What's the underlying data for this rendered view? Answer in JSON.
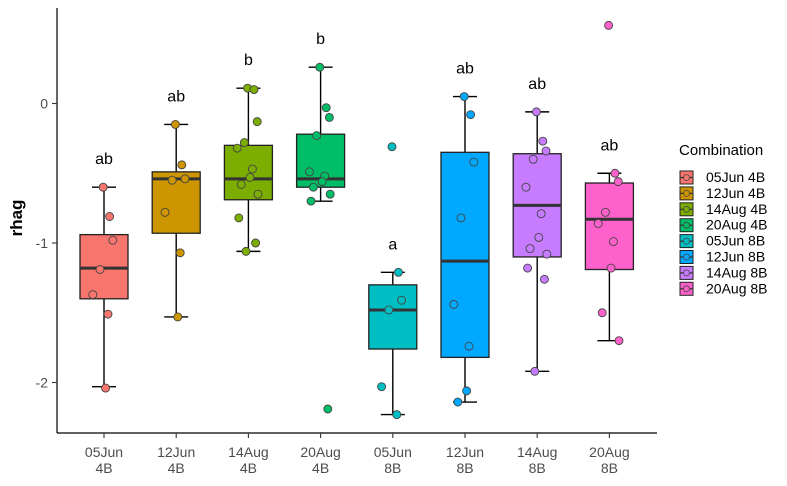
{
  "chart_data": {
    "type": "boxplot",
    "title": "",
    "xlabel": "",
    "ylabel": "rhag",
    "ylim": [
      -2.35,
      0.68
    ],
    "yticks": [
      0,
      -1,
      -2
    ],
    "ytick_labels": [
      "0",
      "-1",
      "-2"
    ],
    "grid": false,
    "legend": {
      "title": "Combination",
      "placement": "right"
    },
    "categories": [
      {
        "line1": "05Jun",
        "line2": "4B"
      },
      {
        "line1": "12Jun",
        "line2": "4B"
      },
      {
        "line1": "14Aug",
        "line2": "4B"
      },
      {
        "line1": "20Aug",
        "line2": "4B"
      },
      {
        "line1": "05Jun",
        "line2": "8B"
      },
      {
        "line1": "12Jun",
        "line2": "8B"
      },
      {
        "line1": "14Aug",
        "line2": "8B"
      },
      {
        "line1": "20Aug",
        "line2": "8B"
      }
    ],
    "series": [
      {
        "name": "05Jun 4B",
        "color": "#F8766D",
        "whisker_low": -2.03,
        "q1": -1.4,
        "median": -1.18,
        "q3": -0.94,
        "whisker_high": -0.6,
        "letter": "ab",
        "points": [
          -0.6,
          -0.81,
          -0.98,
          -1.19,
          -1.37,
          -1.51,
          -2.04
        ]
      },
      {
        "name": "12Jun 4B",
        "color": "#CD9600",
        "whisker_low": -1.53,
        "q1": -0.93,
        "median": -0.54,
        "q3": -0.49,
        "whisker_high": -0.15,
        "letter": "ab",
        "points": [
          -0.15,
          -0.44,
          -0.54,
          -0.55,
          -0.78,
          -1.07,
          -1.53
        ]
      },
      {
        "name": "14Aug 4B",
        "color": "#7CAE00",
        "whisker_low": -1.06,
        "q1": -0.69,
        "median": -0.54,
        "q3": -0.3,
        "whisker_high": 0.11,
        "letter": "b",
        "points": [
          0.11,
          0.1,
          -0.13,
          -0.28,
          -0.32,
          -0.47,
          -0.53,
          -0.58,
          -0.65,
          -0.82,
          -1.0,
          -1.06
        ]
      },
      {
        "name": "20Aug 4B",
        "color": "#00BE67",
        "whisker_low": -0.7,
        "q1": -0.6,
        "median": -0.54,
        "q3": -0.22,
        "whisker_high": 0.26,
        "letter": "b",
        "points": [
          0.26,
          -0.03,
          -0.1,
          -0.23,
          -0.49,
          -0.52,
          -0.56,
          -0.6,
          -0.65,
          -0.7,
          -2.19
        ]
      },
      {
        "name": "05Jun 8B",
        "color": "#00BFC4",
        "whisker_low": -2.23,
        "q1": -1.76,
        "median": -1.48,
        "q3": -1.3,
        "whisker_high": -1.21,
        "letter": "a",
        "points": [
          -0.31,
          -1.21,
          -1.41,
          -1.48,
          -2.03,
          -2.23
        ]
      },
      {
        "name": "12Jun 8B",
        "color": "#00A9FF",
        "whisker_low": -2.14,
        "q1": -1.82,
        "median": -1.13,
        "q3": -0.35,
        "whisker_high": 0.05,
        "letter": "ab",
        "points": [
          0.05,
          -0.08,
          -0.42,
          -0.82,
          -1.44,
          -1.74,
          -2.06,
          -2.14
        ]
      },
      {
        "name": "14Aug 8B",
        "color": "#C77CFF",
        "whisker_low": -1.92,
        "q1": -1.1,
        "median": -0.73,
        "q3": -0.36,
        "whisker_high": -0.06,
        "letter": "ab",
        "points": [
          -0.06,
          -0.27,
          -0.34,
          -0.4,
          -0.6,
          -0.79,
          -0.96,
          -1.04,
          -1.08,
          -1.18,
          -1.26,
          -1.92
        ]
      },
      {
        "name": "20Aug 8B",
        "color": "#FF61CC",
        "whisker_low": -1.7,
        "q1": -1.19,
        "median": -0.83,
        "q3": -0.57,
        "whisker_high": -0.5,
        "letter": "ab",
        "points": [
          0.56,
          -0.5,
          -0.56,
          -0.78,
          -0.86,
          -0.99,
          -1.18,
          -1.5,
          -1.7
        ]
      }
    ]
  }
}
